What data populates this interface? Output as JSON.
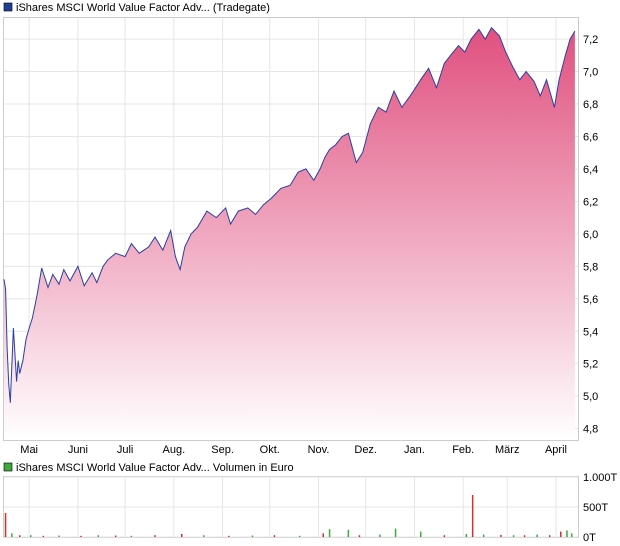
{
  "chart_data": [
    {
      "type": "area",
      "title": "iShares MSCI World Value Factor Adv... (Tradegate)",
      "legend_color": "#1f3f99",
      "line_color": "#2a3fa0",
      "fill_color_top": "#e0507f",
      "fill_color_bottom": "#ffffff",
      "grid": true,
      "ylim": [
        4.73,
        7.33
      ],
      "yticks": [
        4.8,
        5.0,
        5.2,
        5.4,
        5.6,
        5.8,
        6.0,
        6.2,
        6.4,
        6.6,
        6.8,
        7.0,
        7.2
      ],
      "ytick_labels": [
        "4,8",
        "5,0",
        "5,2",
        "5,4",
        "5,6",
        "5,8",
        "6,0",
        "6,2",
        "6,4",
        "6,6",
        "6,8",
        "7,0",
        "7,2"
      ],
      "xlim": [
        "2024-04-15",
        "2025-04-15"
      ],
      "xticks": [
        "2024-05-01",
        "2024-06-01",
        "2024-07-01",
        "2024-08-01",
        "2024-09-01",
        "2024-10-01",
        "2024-11-01",
        "2024-12-01",
        "2025-01-01",
        "2025-02-01",
        "2025-03-01",
        "2025-04-01"
      ],
      "xtick_labels": [
        "Mai",
        "Juni",
        "Juli",
        "Aug.",
        "Sep.",
        "Okt.",
        "Nov.",
        "Dez.",
        "Jan.",
        "Feb.",
        "März",
        "April"
      ],
      "x": [
        "2024-04-15",
        "2024-04-16",
        "2024-04-17",
        "2024-04-18",
        "2024-04-19",
        "2024-04-21",
        "2024-04-23",
        "2024-04-24",
        "2024-04-25",
        "2024-04-27",
        "2024-04-29",
        "2024-05-01",
        "2024-05-03",
        "2024-05-06",
        "2024-05-09",
        "2024-05-13",
        "2024-05-16",
        "2024-05-20",
        "2024-05-23",
        "2024-05-27",
        "2024-06-01",
        "2024-06-05",
        "2024-06-10",
        "2024-06-13",
        "2024-06-17",
        "2024-06-20",
        "2024-06-25",
        "2024-07-01",
        "2024-07-05",
        "2024-07-10",
        "2024-07-16",
        "2024-07-20",
        "2024-07-25",
        "2024-07-30",
        "2024-08-02",
        "2024-08-05",
        "2024-08-08",
        "2024-08-12",
        "2024-08-16",
        "2024-08-22",
        "2024-08-28",
        "2024-09-03",
        "2024-09-06",
        "2024-09-11",
        "2024-09-17",
        "2024-09-22",
        "2024-09-27",
        "2024-10-02",
        "2024-10-08",
        "2024-10-14",
        "2024-10-19",
        "2024-10-24",
        "2024-10-29",
        "2024-11-02",
        "2024-11-05",
        "2024-11-08",
        "2024-11-12",
        "2024-11-16",
        "2024-11-20",
        "2024-11-25",
        "2024-11-29",
        "2024-12-04",
        "2024-12-09",
        "2024-12-14",
        "2024-12-19",
        "2024-12-24",
        "2024-12-30",
        "2025-01-05",
        "2025-01-10",
        "2025-01-15",
        "2025-01-20",
        "2025-01-24",
        "2025-01-29",
        "2025-02-02",
        "2025-02-06",
        "2025-02-11",
        "2025-02-15",
        "2025-02-19",
        "2025-02-24",
        "2025-02-28",
        "2025-03-05",
        "2025-03-09",
        "2025-03-13",
        "2025-03-18",
        "2025-03-22",
        "2025-03-26",
        "2025-03-31",
        "2025-04-03",
        "2025-04-07",
        "2025-04-10",
        "2025-04-13"
      ],
      "y": [
        5.72,
        5.66,
        5.3,
        5.08,
        4.96,
        5.42,
        5.09,
        5.22,
        5.14,
        5.22,
        5.35,
        5.42,
        5.48,
        5.62,
        5.79,
        5.67,
        5.75,
        5.69,
        5.78,
        5.71,
        5.8,
        5.68,
        5.76,
        5.7,
        5.8,
        5.84,
        5.88,
        5.86,
        5.94,
        5.88,
        5.92,
        5.98,
        5.9,
        6.02,
        5.86,
        5.78,
        5.92,
        6.0,
        6.04,
        6.14,
        6.1,
        6.16,
        6.06,
        6.14,
        6.16,
        6.12,
        6.18,
        6.22,
        6.28,
        6.3,
        6.38,
        6.4,
        6.33,
        6.4,
        6.47,
        6.52,
        6.55,
        6.6,
        6.62,
        6.44,
        6.5,
        6.68,
        6.78,
        6.75,
        6.88,
        6.78,
        6.86,
        6.95,
        7.02,
        6.9,
        7.05,
        7.1,
        7.16,
        7.12,
        7.2,
        7.26,
        7.2,
        7.27,
        7.22,
        7.12,
        7.02,
        6.95,
        7.0,
        6.94,
        6.85,
        6.95,
        6.78,
        6.95,
        7.1,
        7.2,
        7.25
      ]
    },
    {
      "type": "bar",
      "title": "iShares MSCI World Value Factor Adv... Volumen in Euro",
      "legend_color": "#3daa3d",
      "ylim": [
        0,
        1000
      ],
      "yticks": [
        0,
        500,
        1000
      ],
      "ytick_labels": [
        "0T",
        "500T",
        "1.000T"
      ],
      "x": [
        "2024-04-16",
        "2024-04-20",
        "2024-04-25",
        "2024-05-02",
        "2024-05-10",
        "2024-05-20",
        "2024-06-03",
        "2024-06-14",
        "2024-06-25",
        "2024-07-05",
        "2024-07-20",
        "2024-08-06",
        "2024-08-20",
        "2024-09-05",
        "2024-09-20",
        "2024-10-04",
        "2024-10-20",
        "2024-11-04",
        "2024-11-08",
        "2024-11-20",
        "2024-11-27",
        "2024-12-10",
        "2024-12-20",
        "2025-01-05",
        "2025-01-20",
        "2025-02-03",
        "2025-02-07",
        "2025-02-14",
        "2025-02-25",
        "2025-03-05",
        "2025-03-12",
        "2025-03-20",
        "2025-03-28",
        "2025-04-04",
        "2025-04-08",
        "2025-04-11"
      ],
      "values": [
        400,
        60,
        30,
        30,
        20,
        25,
        20,
        30,
        25,
        20,
        30,
        50,
        30,
        20,
        25,
        30,
        20,
        60,
        130,
        120,
        30,
        40,
        140,
        90,
        30,
        50,
        700,
        40,
        35,
        30,
        30,
        40,
        30,
        90,
        110,
        60
      ],
      "colors": [
        "#d03030",
        "#3daa3d",
        "#d03030",
        "#3daa3d",
        "#d03030",
        "#3daa3d",
        "#d03030",
        "#3daa3d",
        "#d03030",
        "#3daa3d",
        "#d03030",
        "#d03030",
        "#3daa3d",
        "#d03030",
        "#3daa3d",
        "#d03030",
        "#3daa3d",
        "#d03030",
        "#3daa3d",
        "#3daa3d",
        "#d03030",
        "#3daa3d",
        "#3daa3d",
        "#3daa3d",
        "#d03030",
        "#3daa3d",
        "#d03030",
        "#3daa3d",
        "#d03030",
        "#3daa3d",
        "#d03030",
        "#3daa3d",
        "#d03030",
        "#d03030",
        "#3daa3d",
        "#3daa3d"
      ]
    }
  ]
}
